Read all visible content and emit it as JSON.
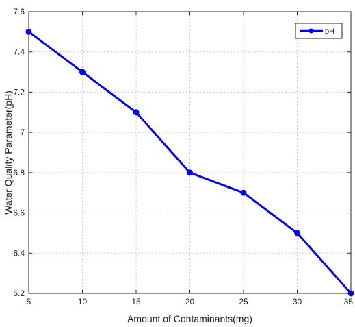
{
  "chart_data": {
    "type": "line",
    "title": "",
    "xlabel": "Amount of Contaminants(mg)",
    "ylabel": "Water Quality Parameter(pH)",
    "xlim": [
      5,
      35
    ],
    "ylim": [
      6.2,
      7.6
    ],
    "xticks": [
      "5",
      "10",
      "15",
      "20",
      "25",
      "30",
      "35"
    ],
    "yticks": [
      "6.2",
      "6.4",
      "6.6",
      "6.8",
      "7",
      "7.2",
      "7.4",
      "7.6"
    ],
    "grid": true,
    "legend_position": "top-right",
    "series": [
      {
        "name": "pH",
        "color": "#0000ff",
        "marker": "circle",
        "x": [
          5,
          10,
          15,
          20,
          25,
          30,
          35
        ],
        "y": [
          7.5,
          7.3,
          7.1,
          6.8,
          6.7,
          6.5,
          6.2
        ]
      }
    ]
  }
}
